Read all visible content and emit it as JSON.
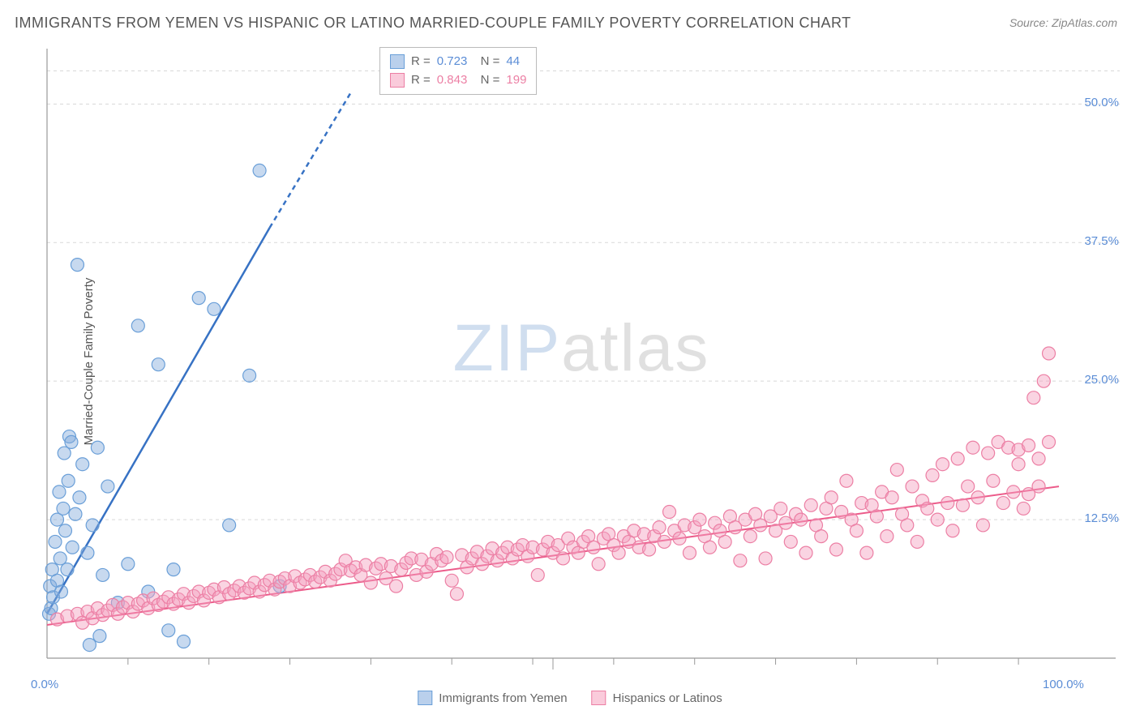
{
  "title": "IMMIGRANTS FROM YEMEN VS HISPANIC OR LATINO MARRIED-COUPLE FAMILY POVERTY CORRELATION CHART",
  "source": "Source: ZipAtlas.com",
  "watermark_zip": "ZIP",
  "watermark_atlas": "atlas",
  "y_axis_label": "Married-Couple Family Poverty",
  "chart": {
    "type": "scatter",
    "background_color": "#ffffff",
    "grid_color": "#d8d8d8",
    "axis_color": "#999999",
    "xlim": [
      0,
      100
    ],
    "ylim": [
      0,
      55
    ],
    "x_ticks": [
      {
        "v": 0,
        "label": "0.0%"
      },
      {
        "v": 100,
        "label": "100.0%"
      }
    ],
    "y_ticks": [
      {
        "v": 12.5,
        "label": "12.5%"
      },
      {
        "v": 25,
        "label": "25.0%"
      },
      {
        "v": 37.5,
        "label": "37.5%"
      },
      {
        "v": 50,
        "label": "50.0%"
      }
    ],
    "x_minor_ticks": [
      8,
      16,
      24,
      32,
      40,
      48,
      56,
      64,
      72,
      80,
      88,
      96
    ],
    "series": [
      {
        "name": "Immigrants from Yemen",
        "color_fill": "rgba(130,170,220,0.45)",
        "color_stroke": "#6a9fd8",
        "marker_r": 8,
        "R": "0.723",
        "N": "44",
        "trend": {
          "x1": 0,
          "y1": 4,
          "x2": 24,
          "y2": 42,
          "dash_from_x": 22,
          "color": "#3772c4",
          "width": 2.5
        },
        "points": [
          [
            0.2,
            4.0
          ],
          [
            0.3,
            6.5
          ],
          [
            0.4,
            4.5
          ],
          [
            0.5,
            8.0
          ],
          [
            0.6,
            5.5
          ],
          [
            0.8,
            10.5
          ],
          [
            1.0,
            7.0
          ],
          [
            1.0,
            12.5
          ],
          [
            1.2,
            15.0
          ],
          [
            1.3,
            9.0
          ],
          [
            1.4,
            6.0
          ],
          [
            1.6,
            13.5
          ],
          [
            1.7,
            18.5
          ],
          [
            1.8,
            11.5
          ],
          [
            2.0,
            8.0
          ],
          [
            2.1,
            16.0
          ],
          [
            2.2,
            20.0
          ],
          [
            2.4,
            19.5
          ],
          [
            2.5,
            10.0
          ],
          [
            2.8,
            13.0
          ],
          [
            3.0,
            35.5
          ],
          [
            3.2,
            14.5
          ],
          [
            3.5,
            17.5
          ],
          [
            4.0,
            9.5
          ],
          [
            4.2,
            1.2
          ],
          [
            4.5,
            12.0
          ],
          [
            5.0,
            19.0
          ],
          [
            5.2,
            2.0
          ],
          [
            5.5,
            7.5
          ],
          [
            6.0,
            15.5
          ],
          [
            7.0,
            5.0
          ],
          [
            8.0,
            8.5
          ],
          [
            9.0,
            30.0
          ],
          [
            10.0,
            6.0
          ],
          [
            11.0,
            26.5
          ],
          [
            12.5,
            8.0
          ],
          [
            13.5,
            1.5
          ],
          [
            15.0,
            32.5
          ],
          [
            16.5,
            31.5
          ],
          [
            18.0,
            12.0
          ],
          [
            20.0,
            25.5
          ],
          [
            21.0,
            44.0
          ],
          [
            23.0,
            6.5
          ],
          [
            12.0,
            2.5
          ]
        ]
      },
      {
        "name": "Hispanics or Latinos",
        "color_fill": "rgba(245,160,190,0.45)",
        "color_stroke": "#ec7fa4",
        "marker_r": 8,
        "R": "0.843",
        "N": "199",
        "trend": {
          "x1": 0,
          "y1": 3.0,
          "x2": 100,
          "y2": 15.5,
          "color": "#ec5b8a",
          "width": 2
        },
        "points": [
          [
            1,
            3.5
          ],
          [
            2,
            3.8
          ],
          [
            3,
            4.0
          ],
          [
            3.5,
            3.2
          ],
          [
            4,
            4.2
          ],
          [
            4.5,
            3.6
          ],
          [
            5,
            4.5
          ],
          [
            5.5,
            3.9
          ],
          [
            6,
            4.3
          ],
          [
            6.5,
            4.8
          ],
          [
            7,
            4.0
          ],
          [
            7.5,
            4.6
          ],
          [
            8,
            5.0
          ],
          [
            8.5,
            4.2
          ],
          [
            9,
            4.9
          ],
          [
            9.5,
            5.2
          ],
          [
            10,
            4.5
          ],
          [
            10.5,
            5.4
          ],
          [
            11,
            4.8
          ],
          [
            11.5,
            5.1
          ],
          [
            12,
            5.5
          ],
          [
            12.5,
            4.9
          ],
          [
            13,
            5.3
          ],
          [
            13.5,
            5.8
          ],
          [
            14,
            5.0
          ],
          [
            14.5,
            5.6
          ],
          [
            15,
            6.0
          ],
          [
            15.5,
            5.2
          ],
          [
            16,
            5.9
          ],
          [
            16.5,
            6.2
          ],
          [
            17,
            5.5
          ],
          [
            17.5,
            6.4
          ],
          [
            18,
            5.8
          ],
          [
            18.5,
            6.1
          ],
          [
            19,
            6.5
          ],
          [
            19.5,
            5.9
          ],
          [
            20,
            6.3
          ],
          [
            20.5,
            6.8
          ],
          [
            21,
            6.0
          ],
          [
            21.5,
            6.6
          ],
          [
            22,
            7.0
          ],
          [
            22.5,
            6.2
          ],
          [
            23,
            6.9
          ],
          [
            23.5,
            7.2
          ],
          [
            24,
            6.5
          ],
          [
            24.5,
            7.4
          ],
          [
            25,
            6.8
          ],
          [
            25.5,
            7.1
          ],
          [
            26,
            7.5
          ],
          [
            26.5,
            6.9
          ],
          [
            27,
            7.3
          ],
          [
            27.5,
            7.8
          ],
          [
            28,
            7.0
          ],
          [
            28.5,
            7.6
          ],
          [
            29,
            8.0
          ],
          [
            29.5,
            8.8
          ],
          [
            30,
            7.9
          ],
          [
            30.5,
            8.2
          ],
          [
            31,
            7.5
          ],
          [
            31.5,
            8.4
          ],
          [
            32,
            6.8
          ],
          [
            32.5,
            8.1
          ],
          [
            33,
            8.5
          ],
          [
            33.5,
            7.2
          ],
          [
            34,
            8.3
          ],
          [
            34.5,
            6.5
          ],
          [
            35,
            8.0
          ],
          [
            35.5,
            8.6
          ],
          [
            36,
            9.0
          ],
          [
            36.5,
            7.5
          ],
          [
            37,
            8.9
          ],
          [
            37.5,
            7.8
          ],
          [
            38,
            8.5
          ],
          [
            38.5,
            9.4
          ],
          [
            39,
            8.8
          ],
          [
            39.5,
            9.1
          ],
          [
            40,
            7.0
          ],
          [
            40.5,
            5.8
          ],
          [
            41,
            9.3
          ],
          [
            41.5,
            8.2
          ],
          [
            42,
            9.0
          ],
          [
            42.5,
            9.6
          ],
          [
            43,
            8.5
          ],
          [
            43.5,
            9.2
          ],
          [
            44,
            9.9
          ],
          [
            44.5,
            8.8
          ],
          [
            45,
            9.5
          ],
          [
            45.5,
            10.0
          ],
          [
            46,
            9.0
          ],
          [
            46.5,
            9.8
          ],
          [
            47,
            10.2
          ],
          [
            47.5,
            9.2
          ],
          [
            48,
            10.0
          ],
          [
            48.5,
            7.5
          ],
          [
            49,
            9.8
          ],
          [
            49.5,
            10.5
          ],
          [
            50,
            9.5
          ],
          [
            50.5,
            10.2
          ],
          [
            51,
            9.0
          ],
          [
            51.5,
            10.8
          ],
          [
            52,
            10.0
          ],
          [
            52.5,
            9.5
          ],
          [
            53,
            10.5
          ],
          [
            53.5,
            11.0
          ],
          [
            54,
            10.0
          ],
          [
            54.5,
            8.5
          ],
          [
            55,
            10.8
          ],
          [
            55.5,
            11.2
          ],
          [
            56,
            10.2
          ],
          [
            56.5,
            9.5
          ],
          [
            57,
            11.0
          ],
          [
            57.5,
            10.5
          ],
          [
            58,
            11.5
          ],
          [
            58.5,
            10.0
          ],
          [
            59,
            11.2
          ],
          [
            59.5,
            9.8
          ],
          [
            60,
            11.0
          ],
          [
            60.5,
            11.8
          ],
          [
            61,
            10.5
          ],
          [
            61.5,
            13.2
          ],
          [
            62,
            11.5
          ],
          [
            62.5,
            10.8
          ],
          [
            63,
            12.0
          ],
          [
            63.5,
            9.5
          ],
          [
            64,
            11.8
          ],
          [
            64.5,
            12.5
          ],
          [
            65,
            11.0
          ],
          [
            65.5,
            10.0
          ],
          [
            66,
            12.2
          ],
          [
            66.5,
            11.5
          ],
          [
            67,
            10.5
          ],
          [
            67.5,
            12.8
          ],
          [
            68,
            11.8
          ],
          [
            68.5,
            8.8
          ],
          [
            69,
            12.5
          ],
          [
            69.5,
            11.0
          ],
          [
            70,
            13.0
          ],
          [
            70.5,
            12.0
          ],
          [
            71,
            9.0
          ],
          [
            71.5,
            12.8
          ],
          [
            72,
            11.5
          ],
          [
            72.5,
            13.5
          ],
          [
            73,
            12.2
          ],
          [
            73.5,
            10.5
          ],
          [
            74,
            13.0
          ],
          [
            74.5,
            12.5
          ],
          [
            75,
            9.5
          ],
          [
            75.5,
            13.8
          ],
          [
            76,
            12.0
          ],
          [
            76.5,
            11.0
          ],
          [
            77,
            13.5
          ],
          [
            77.5,
            14.5
          ],
          [
            78,
            9.8
          ],
          [
            78.5,
            13.2
          ],
          [
            79,
            16.0
          ],
          [
            79.5,
            12.5
          ],
          [
            80,
            11.5
          ],
          [
            80.5,
            14.0
          ],
          [
            81,
            9.5
          ],
          [
            81.5,
            13.8
          ],
          [
            82,
            12.8
          ],
          [
            82.5,
            15.0
          ],
          [
            83,
            11.0
          ],
          [
            83.5,
            14.5
          ],
          [
            84,
            17.0
          ],
          [
            84.5,
            13.0
          ],
          [
            85,
            12.0
          ],
          [
            85.5,
            15.5
          ],
          [
            86,
            10.5
          ],
          [
            86.5,
            14.2
          ],
          [
            87,
            13.5
          ],
          [
            87.5,
            16.5
          ],
          [
            88,
            12.5
          ],
          [
            88.5,
            17.5
          ],
          [
            89,
            14.0
          ],
          [
            89.5,
            11.5
          ],
          [
            90,
            18.0
          ],
          [
            90.5,
            13.8
          ],
          [
            91,
            15.5
          ],
          [
            91.5,
            19.0
          ],
          [
            92,
            14.5
          ],
          [
            92.5,
            12.0
          ],
          [
            93,
            18.5
          ],
          [
            93.5,
            16.0
          ],
          [
            94,
            19.5
          ],
          [
            94.5,
            14.0
          ],
          [
            95,
            19.0
          ],
          [
            95.5,
            15.0
          ],
          [
            96,
            18.8
          ],
          [
            96.5,
            13.5
          ],
          [
            97,
            19.2
          ],
          [
            97.5,
            23.5
          ],
          [
            98,
            15.5
          ],
          [
            98.5,
            25.0
          ],
          [
            99,
            19.5
          ],
          [
            99,
            27.5
          ],
          [
            98,
            18.0
          ],
          [
            97,
            14.8
          ],
          [
            96,
            17.5
          ]
        ]
      }
    ]
  },
  "legend": {
    "items": [
      {
        "label": "Immigrants from Yemen",
        "fill": "rgba(130,170,220,0.55)",
        "stroke": "#6a9fd8"
      },
      {
        "label": "Hispanics or Latinos",
        "fill": "rgba(245,160,190,0.55)",
        "stroke": "#ec7fa4"
      }
    ]
  }
}
